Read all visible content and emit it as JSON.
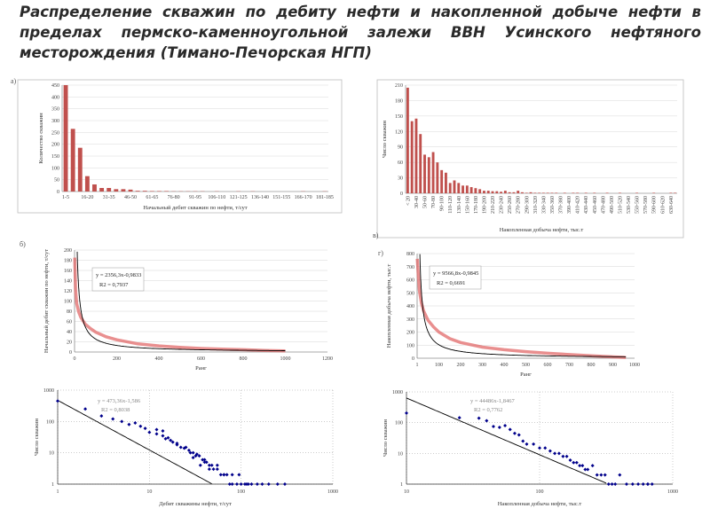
{
  "title": "Распределение скважин по дебиту нефти  и накопленной добыче нефти  в пределах пермско-каменноугольной залежи ВВН Усинского нефтяного месторождения (Тимано-Печорская НГП)",
  "colors": {
    "bar": "#c0504d",
    "curve_red": "#e06060",
    "trend": "#000000",
    "points": "#00008b",
    "grid": "#bbbbbb"
  },
  "chart_data": [
    {
      "id": "a",
      "letter": "а)",
      "type": "bar",
      "ylabel": "Количество скважин",
      "xlabel": "Начальный дебит скважин по нефти, т/сут",
      "ylim": [
        0,
        450
      ],
      "yticks": [
        0,
        50,
        100,
        150,
        200,
        250,
        300,
        350,
        400,
        450
      ],
      "categories": [
        "1-5",
        "6-10",
        "11-15",
        "16-20",
        "21-25",
        "26-30",
        "31-35",
        "36-40",
        "41-45",
        "46-50",
        "51-55",
        "56-60",
        "61-65",
        "66-70",
        "71-75",
        "76-80",
        "81-85",
        "86-90",
        "91-95",
        "96-100",
        "101-105",
        "106-110",
        "111-115",
        "116-120",
        "121-125",
        "126-130",
        "131-135",
        "136-140",
        "141-145",
        "146-150",
        "151-155",
        "156-160",
        "161-165",
        "166-170",
        "171-175",
        "176-180",
        "181-185"
      ],
      "tick_labels": [
        "1-5",
        "16-20",
        "31-35",
        "46-50",
        "61-65",
        "76-80",
        "91-95",
        "106-110",
        "121-125",
        "136-140",
        "151-155",
        "166-170",
        "181-185"
      ],
      "values": [
        450,
        265,
        185,
        65,
        30,
        15,
        15,
        10,
        10,
        8,
        3,
        3,
        2,
        2,
        2,
        1,
        1,
        1,
        1,
        1,
        0,
        1,
        0,
        0,
        1,
        0,
        1,
        0,
        0,
        0,
        0,
        0,
        0,
        1,
        0,
        0,
        1
      ]
    },
    {
      "id": "b",
      "letter": "в)",
      "type": "bar",
      "ylabel": "Число скважин",
      "xlabel": "Накопленная добыча нефти, тыс.т",
      "ylim": [
        0,
        210
      ],
      "yticks": [
        0,
        30,
        60,
        90,
        120,
        150,
        180,
        210
      ],
      "categories": [
        "< 20",
        "20-30",
        "30-40",
        "40-50",
        "50-60",
        "60-70",
        "70-80",
        "80-90",
        "90-100",
        "100-110",
        "110-120",
        "120-130",
        "130-140",
        "140-150",
        "150-160",
        "160-170",
        "170-180",
        "180-190",
        "190-200",
        "200-210",
        "210-220",
        "220-230",
        "230-240",
        "240-250",
        "250-260",
        "260-270",
        "270-280",
        "280-290",
        "290-300",
        "300-310",
        "310-320",
        "320-330",
        "330-340",
        "340-350",
        "350-360",
        "360-370",
        "370-380",
        "380-390",
        "390-400",
        "400-410",
        "410-420",
        "420-430",
        "430-440",
        "440-450",
        "450-460",
        "460-470",
        "470-480",
        "480-490",
        "490-500",
        "500-510",
        "510-520",
        "520-530",
        "530-540",
        "540-550",
        "550-560",
        "560-570",
        "570-580",
        "580-590",
        "590-600",
        "600-610",
        "610-620",
        "620-630",
        "630-640",
        "640-650"
      ],
      "tick_labels": [
        "< 20",
        "30-40",
        "50-60",
        "70-80",
        "90-100",
        "110-120",
        "130-140",
        "150-160",
        "170-180",
        "190-200",
        "210-220",
        "230-240",
        "250-260",
        "270-280",
        "290-300",
        "310-320",
        "330-340",
        "350-360",
        "370-380",
        "390-400",
        "410-420",
        "430-440",
        "450-460",
        "470-480",
        "490-500",
        "510-520",
        "530-540",
        "550-560",
        "570-580",
        "590-600",
        "610-620",
        "630-640"
      ],
      "values": [
        205,
        140,
        145,
        115,
        75,
        70,
        80,
        60,
        45,
        40,
        20,
        25,
        20,
        15,
        15,
        12,
        10,
        8,
        5,
        5,
        4,
        4,
        3,
        5,
        2,
        2,
        5,
        2,
        1,
        2,
        1,
        1,
        1,
        1,
        1,
        1,
        0,
        1,
        0,
        1,
        1,
        0,
        1,
        0,
        1,
        0,
        0,
        1,
        0,
        0,
        1,
        0,
        0,
        0,
        1,
        0,
        0,
        0,
        1,
        0,
        0,
        0,
        1,
        1
      ]
    },
    {
      "id": "c",
      "letter": "б)",
      "type": "line",
      "ylabel": "Начальный дебит скважин по нефти, т/сут",
      "xlabel": "Ранг",
      "xlim": [
        0,
        1200
      ],
      "ylim": [
        0,
        200
      ],
      "xticks": [
        0,
        200,
        400,
        600,
        800,
        1000,
        1200
      ],
      "xtick_labels": [
        "0",
        "200",
        "400",
        "600",
        "800",
        "1000",
        "1200"
      ],
      "yticks": [
        0,
        20,
        40,
        60,
        80,
        100,
        120,
        140,
        160,
        180,
        200
      ],
      "equation": "y = 2356,3x-0,9833",
      "r2": "R2 = 0,7937",
      "trend": {
        "a": 2356.3,
        "b": -0.9833
      },
      "series_x": [
        1,
        5,
        10,
        20,
        30,
        50,
        75,
        100,
        150,
        200,
        300,
        400,
        500,
        600,
        700,
        800,
        900,
        1000
      ],
      "series_y": [
        185,
        120,
        95,
        78,
        68,
        55,
        46,
        39,
        30,
        24,
        16,
        12,
        9,
        7,
        5.5,
        4.5,
        3,
        2
      ]
    },
    {
      "id": "d",
      "letter": "г)",
      "type": "line",
      "ylabel": "Накопленная добыча нефти, тыс.т",
      "xlabel": "Ранг",
      "xlim": [
        0,
        1000
      ],
      "ylim": [
        0,
        800
      ],
      "xticks": [
        0,
        100,
        200,
        300,
        400,
        500,
        600,
        700,
        800,
        900,
        1000
      ],
      "xtick_labels": [
        "1",
        "100",
        "200",
        "300",
        "400",
        "500",
        "600",
        "700",
        "800",
        "900",
        "1000"
      ],
      "yticks": [
        0,
        100,
        200,
        300,
        400,
        500,
        600,
        700,
        800
      ],
      "equation": "y = 9566,8x-0,9845",
      "r2": "R2 = 0,6691",
      "trend": {
        "a": 9566.8,
        "b": -0.9845
      },
      "series_x": [
        1,
        5,
        10,
        20,
        30,
        50,
        75,
        100,
        150,
        200,
        300,
        400,
        500,
        600,
        700,
        800,
        900,
        960
      ],
      "series_y": [
        760,
        650,
        520,
        420,
        360,
        290,
        240,
        200,
        150,
        120,
        85,
        65,
        50,
        38,
        28,
        18,
        10,
        6
      ]
    },
    {
      "id": "e",
      "letter": "",
      "type": "scatter",
      "ylabel": "Число скважин",
      "xlabel": "Дебит скважины нефти, т/сут",
      "xscale": "log",
      "yscale": "log",
      "xlim": [
        1,
        1000
      ],
      "ylim": [
        1,
        1000
      ],
      "xticks": [
        1,
        10,
        100,
        1000
      ],
      "xtick_labels": [
        "1",
        "10",
        "100",
        "1000"
      ],
      "yticks": [
        1,
        10,
        100,
        1000
      ],
      "ytick_labels": [
        "1",
        "10",
        "100",
        "1000"
      ],
      "equation": "y = 473,36x-1,586",
      "r2": "R2 = 0,8038",
      "trend": {
        "a": 473.36,
        "b": -1.586
      },
      "points_x": [
        1,
        2,
        3,
        4,
        5,
        6,
        7,
        8,
        9,
        10,
        12,
        14,
        15,
        17,
        18,
        20,
        22,
        25,
        27,
        30,
        32,
        35,
        38,
        40,
        42,
        45,
        48,
        50,
        55,
        60,
        65,
        70,
        75,
        80,
        90,
        100,
        110,
        120,
        130,
        150,
        170,
        200,
        250,
        300,
        12,
        14,
        16,
        20,
        24,
        28,
        30,
        33,
        36,
        40,
        45,
        55,
        65,
        80,
        95,
        115
      ],
      "points_y": [
        450,
        250,
        150,
        120,
        100,
        80,
        90,
        70,
        60,
        45,
        40,
        35,
        28,
        25,
        22,
        18,
        15,
        15,
        12,
        10,
        8,
        8,
        6,
        5,
        5,
        4,
        4,
        3,
        3,
        2,
        2,
        2,
        1,
        1,
        1,
        1,
        1,
        1,
        1,
        1,
        1,
        1,
        1,
        1,
        55,
        50,
        30,
        20,
        14,
        10,
        7,
        9,
        4,
        6,
        3,
        4,
        2,
        2,
        2,
        1
      ]
    },
    {
      "id": "f",
      "letter": "",
      "type": "scatter",
      "ylabel": "Число скважин",
      "xlabel": "Накопленная добыча нефти, тыс.т",
      "xscale": "log",
      "yscale": "log",
      "xlim": [
        10,
        1000
      ],
      "ylim": [
        1,
        1000
      ],
      "xticks": [
        10,
        100,
        1000
      ],
      "xtick_labels": [
        "10",
        "100",
        "1000"
      ],
      "yticks": [
        1,
        10,
        100,
        1000
      ],
      "ytick_labels": [
        "1",
        "10",
        "100",
        "1000"
      ],
      "equation": "y = 44486x-1,8467",
      "r2": "R2 = 0,7762",
      "trend": {
        "a": 44486,
        "b": -1.8467
      },
      "points_x": [
        10,
        25,
        35,
        40,
        45,
        50,
        55,
        60,
        65,
        70,
        75,
        80,
        90,
        100,
        110,
        120,
        130,
        140,
        150,
        160,
        170,
        180,
        190,
        200,
        210,
        220,
        230,
        250,
        270,
        290,
        310,
        330,
        350,
        370,
        400,
        450,
        500,
        550,
        600,
        650,
        650,
        700
      ],
      "points_y": [
        205,
        145,
        140,
        115,
        75,
        70,
        80,
        60,
        45,
        40,
        25,
        20,
        20,
        15,
        15,
        12,
        10,
        10,
        8,
        8,
        6,
        5,
        5,
        4,
        4,
        3,
        3,
        4,
        2,
        2,
        2,
        1,
        1,
        1,
        2,
        1,
        1,
        1,
        1,
        1,
        1,
        1
      ]
    }
  ]
}
